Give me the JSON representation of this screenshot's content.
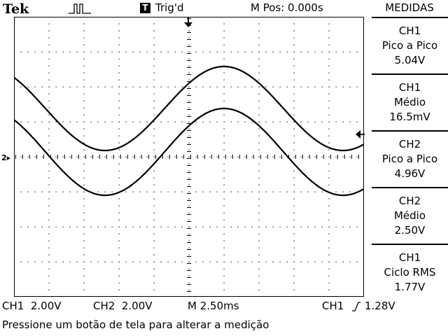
{
  "header": {
    "brand": "Tek",
    "trigger_badge": "T",
    "trigger_status": "Trig'd",
    "main_position": "M Pos: 0.000s",
    "menu_title": "MEDIDAS"
  },
  "measurements": [
    {
      "channel": "CH1",
      "type": "Pico a Pico",
      "value": "5.04V"
    },
    {
      "channel": "CH1",
      "type": "Médio",
      "value": "16.5mV"
    },
    {
      "channel": "CH2",
      "type": "Pico a Pico",
      "value": "4.96V"
    },
    {
      "channel": "CH2",
      "type": "Médio",
      "value": "2.50V"
    },
    {
      "channel": "CH1",
      "type": "Ciclo RMS",
      "value": "1.77V"
    }
  ],
  "status": {
    "ch1_scale": "CH1  2.00V",
    "ch2_scale": "CH2  2.00V",
    "time_scale": "M 2.50ms",
    "trigger_source": "CH1",
    "trigger_level": "1.28V"
  },
  "markers": {
    "channel_ground": "2"
  },
  "message": "Pressione um botão de tela para alterar a medição",
  "icons": [
    "acquisition-pulse-icon",
    "trigger-position-arrow-icon",
    "trigger-level-arrow-icon",
    "rising-edge-icon"
  ]
}
